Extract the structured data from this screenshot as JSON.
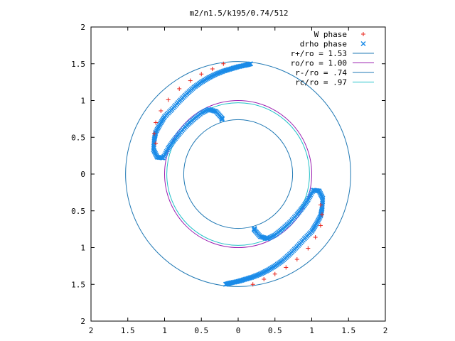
{
  "chart_data": {
    "type": "scatter",
    "title": "m2/n1.5/k195/0.74/512",
    "xlim": [
      -2,
      2
    ],
    "ylim": [
      -2,
      2
    ],
    "x_tick_values": [
      -2,
      -1.5,
      -1,
      -0.5,
      0,
      0.5,
      1,
      1.5,
      2
    ],
    "x_tick_labels": [
      "2",
      "1.5",
      "1",
      "0.5",
      "0",
      "0.5",
      "1",
      "1.5",
      "2"
    ],
    "y_tick_values": [
      2,
      1.5,
      1,
      0.5,
      0,
      -0.5,
      -1,
      -1.5,
      -2
    ],
    "y_tick_labels": [
      "2",
      "1.5",
      "1",
      "0.5",
      "0",
      "0.5",
      "1",
      "1.5",
      "2"
    ],
    "grid": false,
    "legend_position": "top-right",
    "circles": [
      {
        "label": "r+/ro = 1.53",
        "radius": 1.53,
        "color": "#1f78b4"
      },
      {
        "label": "ro/ro = 1.00",
        "radius": 1.0,
        "color": "#9b1fb0"
      },
      {
        "label": "r-/ro = .74",
        "radius": 0.74,
        "color": "#1f78b4"
      },
      {
        "label": "rc/ro = .97",
        "radius": 0.97,
        "color": "#20c0c8"
      }
    ],
    "series": [
      {
        "name": "W phase",
        "marker": "+",
        "color": "#e8231a",
        "x": [
          -0.2,
          -0.35,
          -0.5,
          -0.65,
          -0.8,
          -0.95,
          -1.05,
          -1.12,
          -1.14,
          -1.12,
          0.2,
          0.35,
          0.5,
          0.65,
          0.8,
          0.95,
          1.05,
          1.12,
          1.14,
          1.12
        ],
        "y": [
          1.5,
          1.43,
          1.36,
          1.27,
          1.16,
          1.01,
          0.86,
          0.7,
          0.55,
          0.42,
          -1.5,
          -1.43,
          -1.36,
          -1.27,
          -1.16,
          -1.01,
          -0.86,
          -0.7,
          -0.55,
          -0.42
        ]
      },
      {
        "name": "drho phase",
        "marker": "x",
        "color": "#1a8be8",
        "x": [
          0.17,
          0.1,
          0.0,
          -0.1,
          -0.2,
          -0.3,
          -0.4,
          -0.5,
          -0.6,
          -0.7,
          -0.8,
          -0.9,
          -1.0,
          -1.06,
          -1.12,
          -1.14,
          -1.15,
          -1.1,
          -1.02,
          -0.95,
          -0.88,
          -0.8,
          -0.7,
          -0.6,
          -0.5,
          -0.4,
          -0.3,
          -0.22,
          -0.22,
          -0.17,
          -0.1,
          -0.0,
          0.1,
          0.2,
          0.3,
          0.4,
          0.5,
          0.6,
          0.7,
          0.8,
          0.9,
          1.0,
          1.06,
          1.12,
          1.14,
          1.15,
          1.1,
          1.02,
          0.95,
          0.88,
          0.8,
          0.7,
          0.6,
          0.5,
          0.4,
          0.3,
          0.22,
          0.22
        ],
        "y": [
          1.5,
          1.48,
          1.46,
          1.43,
          1.4,
          1.36,
          1.31,
          1.25,
          1.18,
          1.09,
          0.99,
          0.88,
          0.78,
          0.68,
          0.57,
          0.47,
          0.33,
          0.23,
          0.22,
          0.35,
          0.45,
          0.55,
          0.66,
          0.75,
          0.83,
          0.88,
          0.85,
          0.76,
          0.74,
          -1.5,
          -1.48,
          -1.46,
          -1.43,
          -1.4,
          -1.36,
          -1.31,
          -1.25,
          -1.18,
          -1.09,
          -0.99,
          -0.88,
          -0.78,
          -0.68,
          -0.57,
          -0.47,
          -0.33,
          -0.23,
          -0.22,
          -0.35,
          -0.45,
          -0.55,
          -0.66,
          -0.75,
          -0.83,
          -0.88,
          -0.85,
          -0.76,
          -0.74
        ]
      }
    ]
  }
}
